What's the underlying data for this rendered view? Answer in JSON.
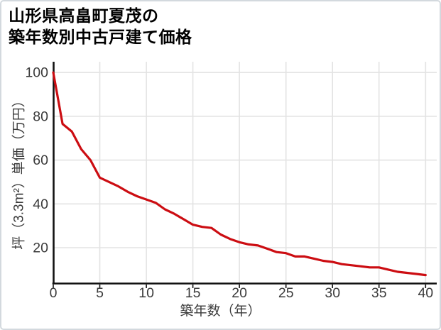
{
  "title": {
    "line1": "山形県高畠町夏茂の",
    "line2": "築年数別中古戸建て価格"
  },
  "chart_data": {
    "type": "line",
    "title": "山形県高畠町夏茂の築年数別中古戸建て価格",
    "xlabel": "築年数（年）",
    "ylabel": "坪（3.3m²）単価（万円）",
    "x": [
      0,
      1,
      2,
      3,
      4,
      5,
      6,
      7,
      8,
      9,
      10,
      11,
      12,
      13,
      14,
      15,
      16,
      17,
      18,
      19,
      20,
      21,
      22,
      23,
      24,
      25,
      26,
      27,
      28,
      29,
      30,
      31,
      32,
      33,
      34,
      35,
      36,
      37,
      38,
      39,
      40
    ],
    "values": [
      100,
      76.5,
      73,
      65,
      60,
      52,
      50,
      48,
      45.5,
      43.5,
      42,
      40.5,
      37.5,
      35.5,
      33,
      30.5,
      29.5,
      29,
      26,
      24,
      22.5,
      21.5,
      21,
      19.5,
      18,
      17.5,
      16,
      16,
      15,
      14,
      13.5,
      12.5,
      12,
      11.5,
      11,
      11,
      10,
      9,
      8.5,
      8,
      7.5
    ],
    "xticks": [
      0,
      5,
      10,
      15,
      20,
      25,
      30,
      35,
      40
    ],
    "yticks": [
      20,
      40,
      60,
      80,
      100
    ],
    "xlim": [
      0,
      41.2
    ],
    "ylim": [
      3.8,
      104.9
    ],
    "grid": true,
    "legend": "none",
    "line_color": "#cc0d12",
    "grid_color": "#e3e3e3",
    "axis_color": "#111111",
    "tick_label_color": "#3b3b3b"
  }
}
